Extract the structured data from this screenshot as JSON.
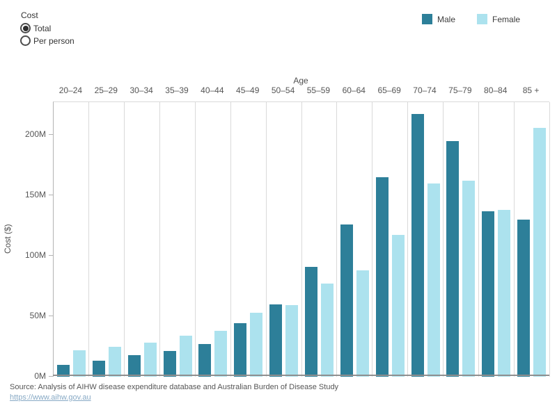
{
  "controls": {
    "cost_filter": {
      "label": "Cost",
      "options": [
        {
          "label": "Total",
          "selected": true
        },
        {
          "label": "Per person",
          "selected": false
        }
      ]
    }
  },
  "legend": {
    "items": [
      {
        "label": "Male",
        "color": "#2d7f99"
      },
      {
        "label": "Female",
        "color": "#ace2ee"
      }
    ]
  },
  "chart_data": {
    "type": "bar",
    "title": "",
    "xlabel": "Age",
    "ylabel": "Cost ($)",
    "categories": [
      "20–24",
      "25–29",
      "30–34",
      "35–39",
      "40–44",
      "45–49",
      "50–54",
      "55–59",
      "60–64",
      "65–69",
      "70–74",
      "75–79",
      "80–84",
      "85 +"
    ],
    "series": [
      {
        "name": "Male",
        "color": "#2d7f99",
        "values": [
          10,
          13,
          18,
          21,
          27,
          44,
          60,
          91,
          126,
          165,
          217,
          195,
          137,
          130
        ]
      },
      {
        "name": "Female",
        "color": "#ace2ee",
        "values": [
          22,
          25,
          28,
          34,
          38,
          53,
          59,
          77,
          88,
          117,
          160,
          162,
          138,
          206
        ]
      }
    ],
    "unit": "M (millions of dollars)",
    "y_ticks": [
      {
        "value": 0,
        "label": "0M"
      },
      {
        "value": 50,
        "label": "50M"
      },
      {
        "value": 100,
        "label": "100M"
      },
      {
        "value": 150,
        "label": "150M"
      },
      {
        "value": 200,
        "label": "200M"
      }
    ],
    "ylim": [
      0,
      227
    ],
    "grid": "vertical category separators",
    "legend_position": "top-right"
  },
  "footer": {
    "source_text": "Source: Analysis of AIHW disease expenditure database and Australian Burden of Disease Study",
    "source_link": "https://www.aihw.gov.au"
  }
}
